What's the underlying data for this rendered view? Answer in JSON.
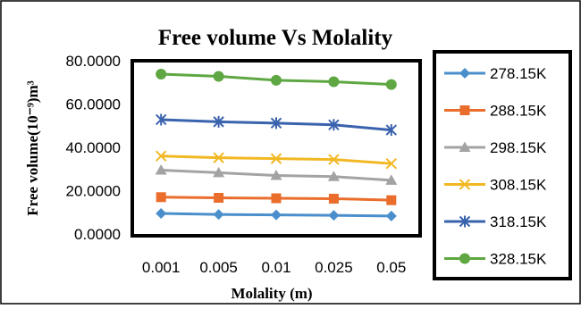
{
  "chart_data": {
    "type": "line",
    "title": "Free volume  Vs Molality",
    "xlabel": "Molality (m)",
    "ylabel": "Free volume(10⁻⁹)m³",
    "categories": [
      "0.001",
      "0.005",
      "0.01",
      "0.025",
      "0.05"
    ],
    "ylim": [
      0,
      80
    ],
    "yticks": [
      "0.0000",
      "20.0000",
      "40.0000",
      "60.0000",
      "80.0000"
    ],
    "grid": false,
    "legend_position": "right",
    "series": [
      {
        "name": "278.15K",
        "color": "#4a8fcc",
        "marker": "diamond",
        "values": [
          9.5,
          9.0,
          8.8,
          8.6,
          8.3
        ]
      },
      {
        "name": "288.15K",
        "color": "#ea6d2c",
        "marker": "square",
        "values": [
          17.0,
          16.7,
          16.5,
          16.3,
          15.6
        ]
      },
      {
        "name": "298.15K",
        "color": "#a3a3a3",
        "marker": "triangle",
        "values": [
          29.5,
          28.3,
          27.0,
          26.5,
          24.8
        ]
      },
      {
        "name": "308.15K",
        "color": "#f2b823",
        "marker": "x",
        "values": [
          36.0,
          35.2,
          34.8,
          34.4,
          32.5
        ]
      },
      {
        "name": "318.15K",
        "color": "#3a63ae",
        "marker": "star",
        "values": [
          52.8,
          51.8,
          51.2,
          50.4,
          48.0
        ]
      },
      {
        "name": "328.15K",
        "color": "#5fa743",
        "marker": "circle",
        "values": [
          73.8,
          72.8,
          71.0,
          70.3,
          69.0
        ]
      }
    ]
  }
}
